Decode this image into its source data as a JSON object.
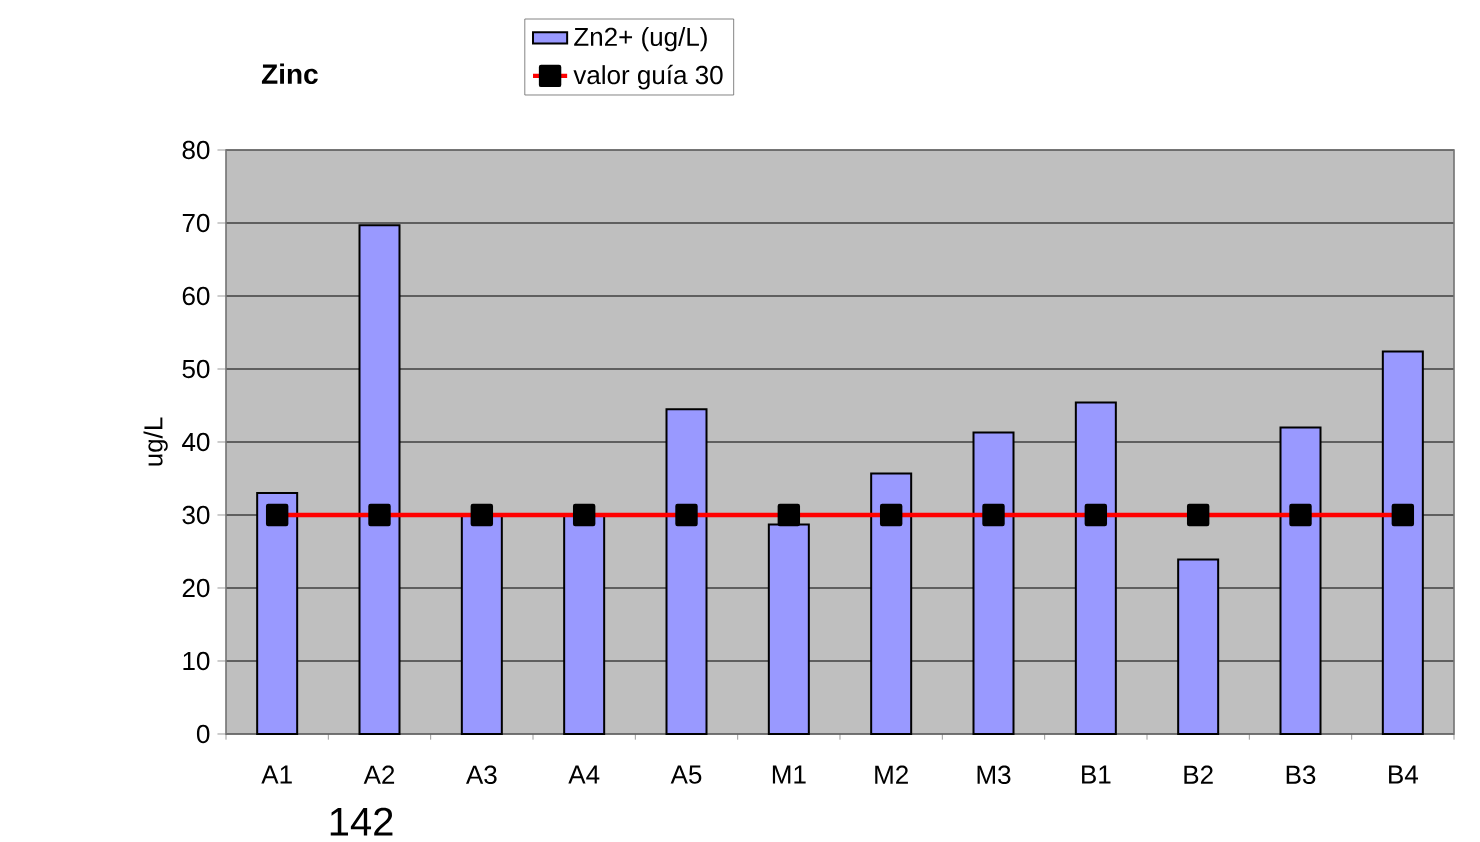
{
  "chart_data": {
    "type": "bar",
    "title": "Zinc",
    "ylabel": "ug/L",
    "categories": [
      "A1",
      "A2",
      "A3",
      "A4",
      "A5",
      "M1",
      "M2",
      "M3",
      "B1",
      "B2",
      "B3",
      "B4"
    ],
    "series": [
      {
        "name": "Zn2+ (ug/L)",
        "color": "#9999ff",
        "values": [
          33.0,
          69.7,
          30.0,
          30.0,
          44.5,
          28.7,
          35.7,
          41.3,
          45.4,
          23.9,
          42.0,
          52.4
        ]
      },
      {
        "type": "line",
        "name": "valor guía 30",
        "color": "#ff0000",
        "marker": "square",
        "values": [
          30,
          30,
          30,
          30,
          30,
          30,
          30,
          30,
          30,
          30,
          30,
          30
        ]
      }
    ],
    "ylim": [
      0,
      80
    ],
    "yticks": [
      0,
      10,
      20,
      30,
      40,
      50,
      60,
      70,
      80
    ],
    "grid": "y",
    "legend": "top",
    "annotations": [
      "142"
    ]
  }
}
